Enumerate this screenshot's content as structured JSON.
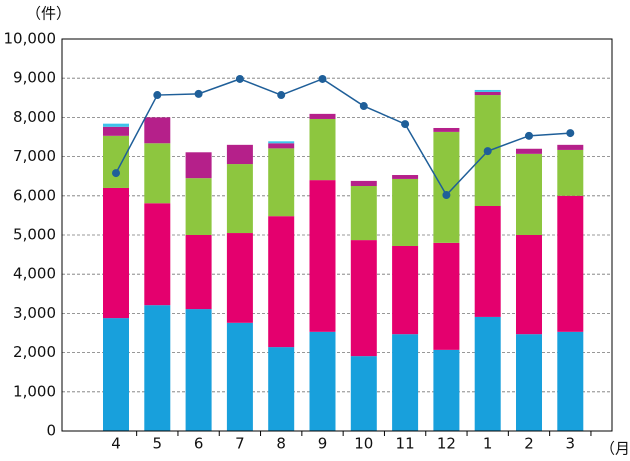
{
  "chart_data": {
    "type": "stacked-bar-line",
    "y_label": "（件）",
    "x_label": "（月）",
    "categories": [
      "4",
      "5",
      "6",
      "7",
      "8",
      "9",
      "10",
      "11",
      "12",
      "1",
      "2",
      "3"
    ],
    "series": [
      {
        "color": "#18a0dc",
        "values": [
          2880,
          3210,
          3110,
          2760,
          2140,
          2530,
          1910,
          2470,
          2070,
          2910,
          2470,
          2530
        ]
      },
      {
        "color": "#e4006e",
        "values": [
          3320,
          2600,
          1890,
          2290,
          3340,
          3870,
          2960,
          2250,
          2730,
          2830,
          2530,
          3470
        ]
      },
      {
        "color": "#8dc63f",
        "values": [
          1330,
          1530,
          1450,
          1760,
          1730,
          1560,
          1380,
          1710,
          2830,
          2830,
          2070,
          1170
        ]
      },
      {
        "color": "#b5208a",
        "values": [
          230,
          660,
          660,
          490,
          130,
          130,
          130,
          100,
          100,
          80,
          130,
          130
        ]
      },
      {
        "color": "#3ec3ea",
        "values": [
          80,
          0,
          0,
          0,
          50,
          0,
          0,
          0,
          0,
          50,
          0,
          0
        ]
      }
    ],
    "line": {
      "color": "#1f5f99",
      "values": [
        6580,
        8570,
        8600,
        8980,
        8570,
        8980,
        8290,
        7830,
        6020,
        7140,
        7530,
        7600
      ]
    },
    "ylim": [
      0,
      10000
    ],
    "yticks": [
      0,
      {
        "value": 1000,
        "label": "1,000"
      },
      {
        "value": 2000,
        "label": "2,000"
      },
      {
        "value": 3000,
        "label": "3,000"
      },
      {
        "value": 4000,
        "label": "4,000"
      },
      {
        "value": 5000,
        "label": "5,000"
      },
      {
        "value": 6000,
        "label": "6,000"
      },
      {
        "value": 7000,
        "label": "7,000"
      },
      {
        "value": 8000,
        "label": "8,000"
      },
      {
        "value": 9000,
        "label": "9,000"
      },
      {
        "value": 10000,
        "label": "10,000"
      }
    ],
    "grid": true
  }
}
